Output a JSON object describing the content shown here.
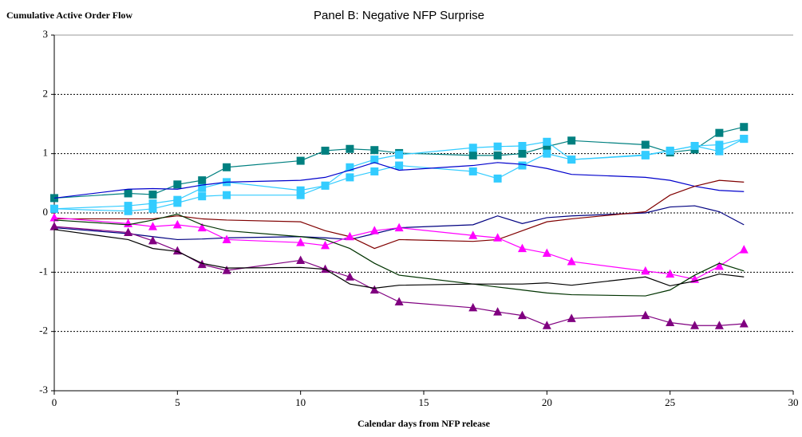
{
  "chart_data": {
    "type": "line",
    "title": "Panel B:  Negative NFP Surprise",
    "ylabel": "Cumulative Active Order Flow",
    "xlabel": "Calendar days from NFP release",
    "x": [
      0,
      3,
      4,
      5,
      6,
      7,
      10,
      11,
      12,
      13,
      14,
      17,
      18,
      19,
      20,
      21,
      24,
      25,
      26,
      27,
      28
    ],
    "xlim": [
      0,
      30
    ],
    "xticks": [
      0,
      5,
      10,
      15,
      20,
      25,
      30
    ],
    "ylim": [
      -3,
      3
    ],
    "yticks": [
      -3,
      -2,
      -1,
      0,
      1,
      2,
      3
    ],
    "grid": true,
    "series": [
      {
        "color": "#008080",
        "marker": "square",
        "values": [
          0.25,
          0.33,
          0.31,
          0.48,
          0.55,
          0.77,
          0.88,
          1.05,
          1.08,
          1.06,
          1.01,
          0.97,
          0.97,
          1.0,
          1.12,
          1.22,
          1.15,
          1.02,
          1.07,
          1.35,
          1.45
        ]
      },
      {
        "color": "#33ccff",
        "marker": "square",
        "values": [
          0.07,
          0.12,
          0.16,
          0.22,
          0.42,
          0.52,
          0.38,
          0.46,
          0.77,
          0.9,
          0.98,
          1.1,
          1.12,
          1.13,
          1.2,
          0.9,
          0.97,
          1.05,
          1.13,
          1.15,
          1.25
        ]
      },
      {
        "color": "#33ccff",
        "marker": "square",
        "values": [
          0.07,
          0.03,
          0.07,
          0.17,
          0.28,
          0.3,
          0.3,
          0.46,
          0.6,
          0.7,
          0.8,
          0.7,
          0.58,
          0.8,
          1.0,
          0.9,
          0.98,
          1.05,
          1.13,
          1.04,
          1.25
        ]
      },
      {
        "color": "#0000cc",
        "marker": "none",
        "values": [
          0.25,
          0.4,
          0.41,
          0.4,
          0.47,
          0.52,
          0.55,
          0.6,
          0.72,
          0.85,
          0.72,
          0.8,
          0.85,
          0.82,
          0.75,
          0.65,
          0.6,
          0.55,
          0.45,
          0.38,
          0.36
        ]
      },
      {
        "color": "#000080",
        "marker": "none",
        "values": [
          -0.25,
          -0.35,
          -0.4,
          -0.45,
          -0.44,
          -0.42,
          -0.4,
          -0.42,
          -0.45,
          -0.35,
          -0.25,
          -0.2,
          -0.05,
          -0.18,
          -0.08,
          -0.05,
          0,
          0.1,
          0.12,
          0.02,
          -0.2
        ]
      },
      {
        "color": "#800000",
        "marker": "none",
        "values": [
          -0.1,
          -0.1,
          -0.1,
          -0.05,
          -0.1,
          -0.12,
          -0.15,
          -0.3,
          -0.4,
          -0.6,
          -0.45,
          -0.48,
          -0.45,
          -0.3,
          -0.15,
          -0.1,
          0.02,
          0.3,
          0.45,
          0.55,
          0.52
        ]
      },
      {
        "color": "#ff00ff",
        "marker": "triangle",
        "values": [
          -0.08,
          -0.18,
          -0.23,
          -0.2,
          -0.25,
          -0.45,
          -0.5,
          -0.55,
          -0.4,
          -0.3,
          -0.25,
          -0.38,
          -0.42,
          -0.6,
          -0.68,
          -0.82,
          -0.98,
          -1.03,
          -1.12,
          -0.9,
          -0.62
        ]
      },
      {
        "color": "#800080",
        "marker": "triangle",
        "values": [
          -0.23,
          -0.33,
          -0.47,
          -0.64,
          -0.87,
          -0.97,
          -0.8,
          -0.95,
          -1.08,
          -1.3,
          -1.5,
          -1.6,
          -1.67,
          -1.73,
          -1.9,
          -1.78,
          -1.73,
          -1.85,
          -1.9,
          -1.9,
          -1.87
        ]
      },
      {
        "color": "#003300",
        "marker": "none",
        "values": [
          -0.12,
          -0.2,
          -0.12,
          -0.02,
          -0.2,
          -0.3,
          -0.4,
          -0.45,
          -0.6,
          -0.85,
          -1.05,
          -1.2,
          -1.25,
          -1.3,
          -1.35,
          -1.38,
          -1.4,
          -1.3,
          -1.05,
          -0.85,
          -0.98
        ]
      },
      {
        "color": "#000000",
        "marker": "none",
        "values": [
          -0.28,
          -0.45,
          -0.6,
          -0.65,
          -0.85,
          -0.93,
          -0.92,
          -0.95,
          -1.2,
          -1.27,
          -1.22,
          -1.2,
          -1.2,
          -1.2,
          -1.18,
          -1.22,
          -1.08,
          -1.23,
          -1.15,
          -1.03,
          -1.08
        ]
      }
    ]
  }
}
